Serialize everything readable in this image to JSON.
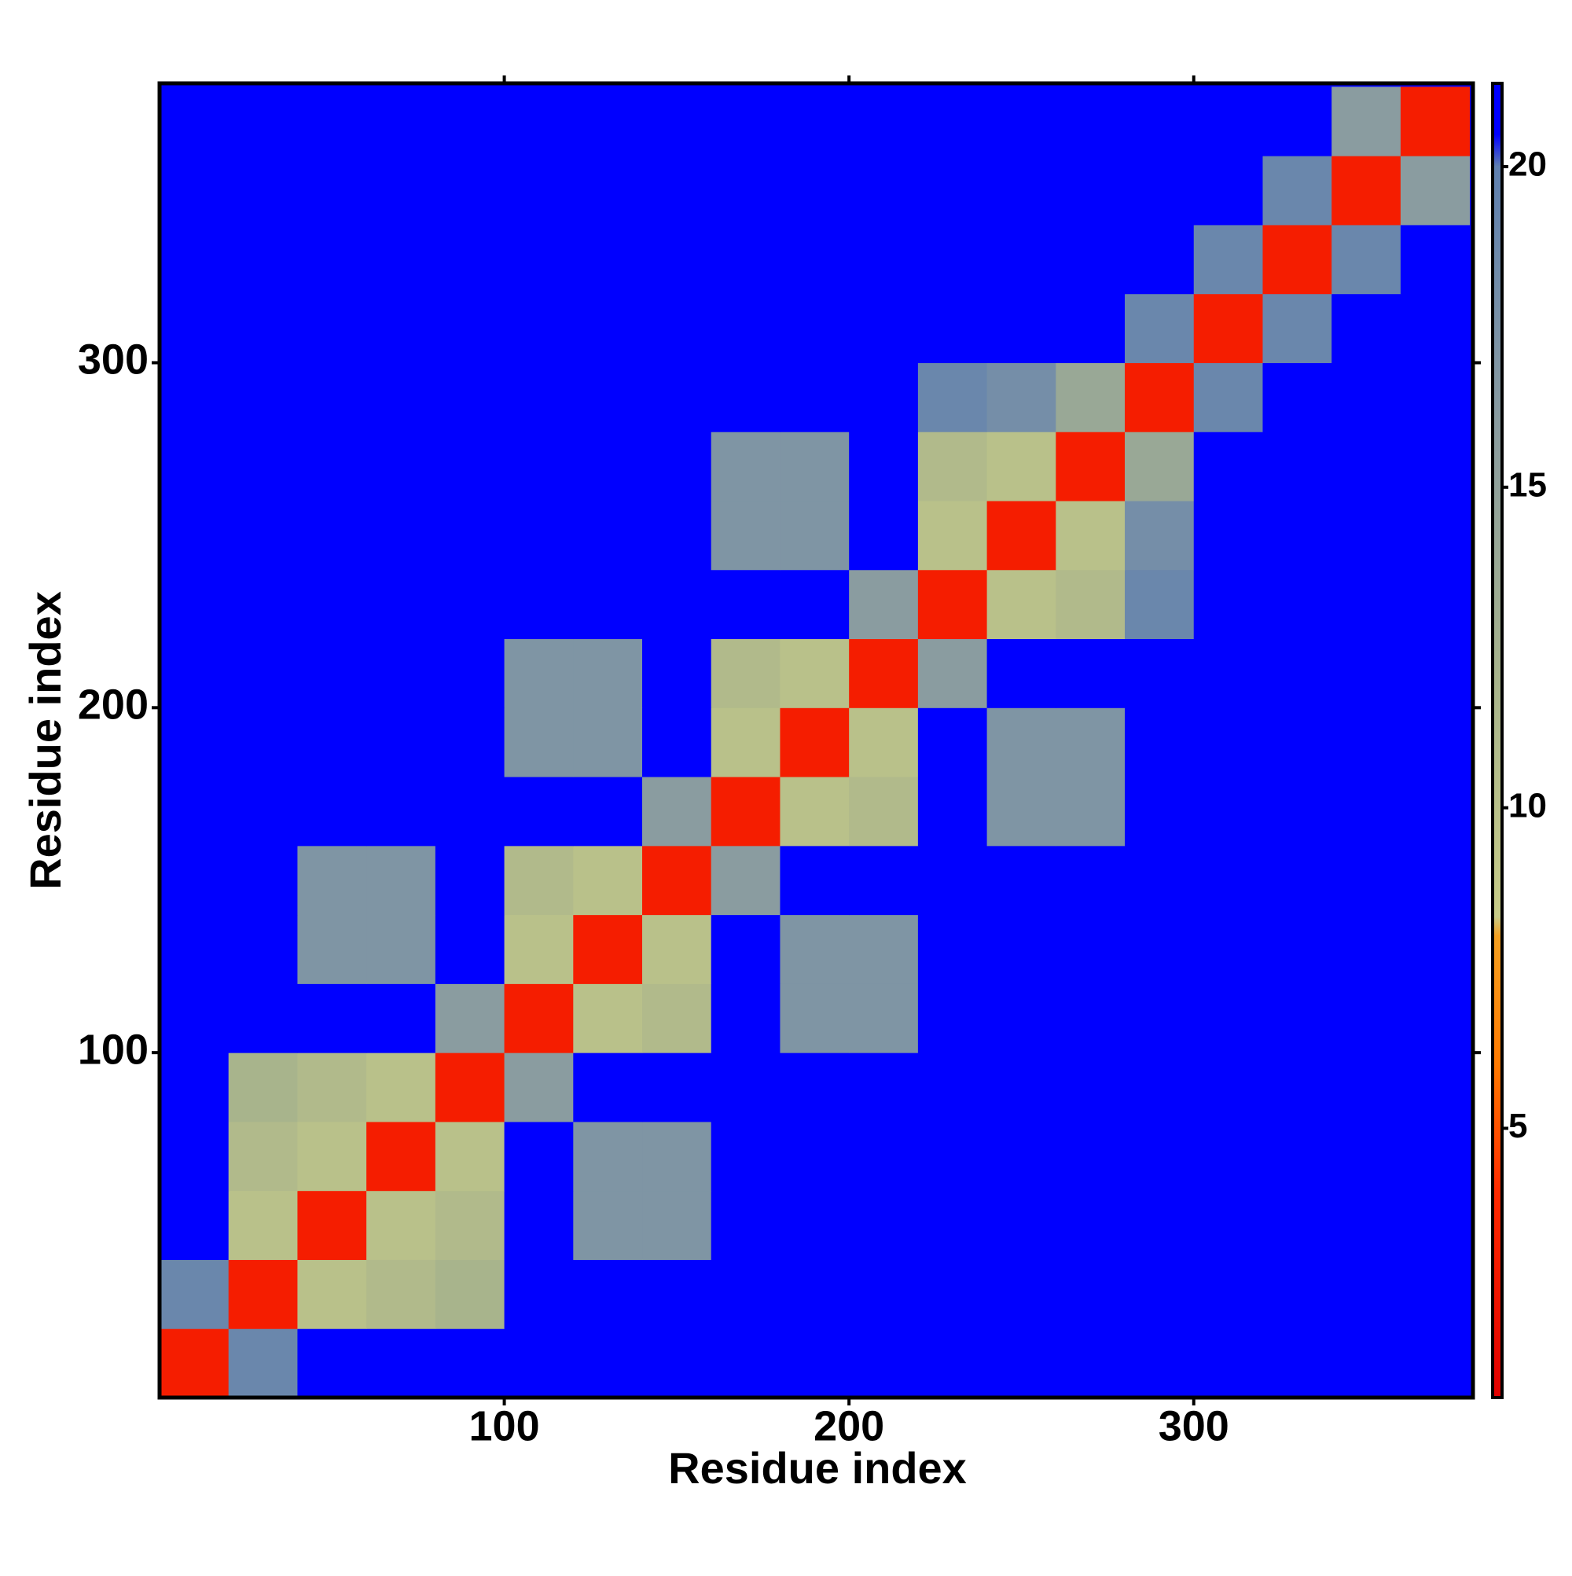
{
  "chart_data": {
    "type": "heatmap",
    "xlabel": "Residue index",
    "ylabel": "Residue index",
    "xlim": [
      0,
      381
    ],
    "ylim": [
      0,
      381
    ],
    "xticks": [
      100,
      200,
      300
    ],
    "yticks": [
      100,
      200,
      300
    ],
    "bins": [
      0,
      20,
      40,
      60,
      80,
      100,
      120,
      140,
      160,
      180,
      200,
      220,
      240,
      260,
      280,
      300,
      320,
      340,
      360,
      380
    ],
    "z": [
      [
        3,
        19,
        21,
        21,
        21,
        21,
        21,
        21,
        21,
        21,
        21,
        21,
        21,
        21,
        21,
        21,
        21,
        21,
        21
      ],
      [
        19,
        3,
        10,
        11,
        12,
        21,
        21,
        21,
        21,
        21,
        21,
        21,
        21,
        21,
        21,
        21,
        21,
        21,
        21
      ],
      [
        21,
        10,
        3,
        10,
        11,
        21,
        17,
        17,
        21,
        21,
        21,
        21,
        21,
        21,
        21,
        21,
        21,
        21,
        21
      ],
      [
        21,
        11,
        10,
        3,
        10,
        21,
        17,
        17,
        21,
        21,
        21,
        21,
        21,
        21,
        21,
        21,
        21,
        21,
        21
      ],
      [
        21,
        12,
        11,
        10,
        3,
        16,
        21,
        21,
        21,
        21,
        21,
        21,
        21,
        21,
        21,
        21,
        21,
        21,
        21
      ],
      [
        21,
        21,
        21,
        21,
        16,
        3,
        10,
        11,
        21,
        17,
        17,
        21,
        21,
        21,
        21,
        21,
        21,
        21,
        21
      ],
      [
        21,
        21,
        17,
        17,
        21,
        10,
        3,
        10,
        21,
        17,
        17,
        21,
        21,
        21,
        21,
        21,
        21,
        21,
        21
      ],
      [
        21,
        21,
        17,
        17,
        21,
        11,
        10,
        3,
        16,
        21,
        21,
        21,
        21,
        21,
        21,
        21,
        21,
        21,
        21
      ],
      [
        21,
        21,
        21,
        21,
        21,
        21,
        21,
        16,
        3,
        10,
        11,
        21,
        17,
        17,
        21,
        21,
        21,
        21,
        21
      ],
      [
        21,
        21,
        21,
        21,
        21,
        17,
        17,
        21,
        10,
        3,
        10,
        21,
        17,
        17,
        21,
        21,
        21,
        21,
        21
      ],
      [
        21,
        21,
        21,
        21,
        21,
        17,
        17,
        21,
        11,
        10,
        3,
        16,
        21,
        21,
        21,
        21,
        21,
        21,
        21
      ],
      [
        21,
        21,
        21,
        21,
        21,
        21,
        21,
        21,
        21,
        21,
        16,
        3,
        10,
        11,
        19,
        21,
        21,
        21,
        21
      ],
      [
        21,
        21,
        21,
        21,
        21,
        21,
        21,
        21,
        17,
        17,
        21,
        10,
        3,
        10,
        18,
        21,
        21,
        21,
        21
      ],
      [
        21,
        21,
        21,
        21,
        21,
        21,
        21,
        21,
        17,
        17,
        21,
        11,
        10,
        3,
        14,
        21,
        21,
        21,
        21
      ],
      [
        21,
        21,
        21,
        21,
        21,
        21,
        21,
        21,
        21,
        21,
        21,
        19,
        18,
        14,
        3,
        19,
        21,
        21,
        21
      ],
      [
        21,
        21,
        21,
        21,
        21,
        21,
        21,
        21,
        21,
        21,
        21,
        21,
        21,
        21,
        19,
        3,
        19,
        21,
        21
      ],
      [
        21,
        21,
        21,
        21,
        21,
        21,
        21,
        21,
        21,
        21,
        21,
        21,
        21,
        21,
        21,
        19,
        3,
        19,
        21
      ],
      [
        21,
        21,
        21,
        21,
        21,
        21,
        21,
        21,
        21,
        21,
        21,
        21,
        21,
        21,
        21,
        21,
        19,
        3,
        16
      ],
      [
        21,
        21,
        21,
        21,
        21,
        21,
        21,
        21,
        21,
        21,
        21,
        21,
        21,
        21,
        21,
        21,
        21,
        16,
        3
      ]
    ],
    "colorbar": {
      "lim": [
        0.8,
        21.3
      ],
      "ticks": [
        5,
        10,
        15,
        20
      ],
      "colorscale": [
        [
          0.8,
          "#e00000"
        ],
        [
          4,
          "#ff2a00"
        ],
        [
          6,
          "#ff7a00"
        ],
        [
          8,
          "#f5a020"
        ],
        [
          8.3,
          "#c8cc88"
        ],
        [
          12,
          "#a8b48c"
        ],
        [
          16,
          "#8a9ca0"
        ],
        [
          20,
          "#5f80b0"
        ],
        [
          20.5,
          "#0000ff"
        ],
        [
          21.3,
          "#0000ff"
        ]
      ]
    }
  }
}
